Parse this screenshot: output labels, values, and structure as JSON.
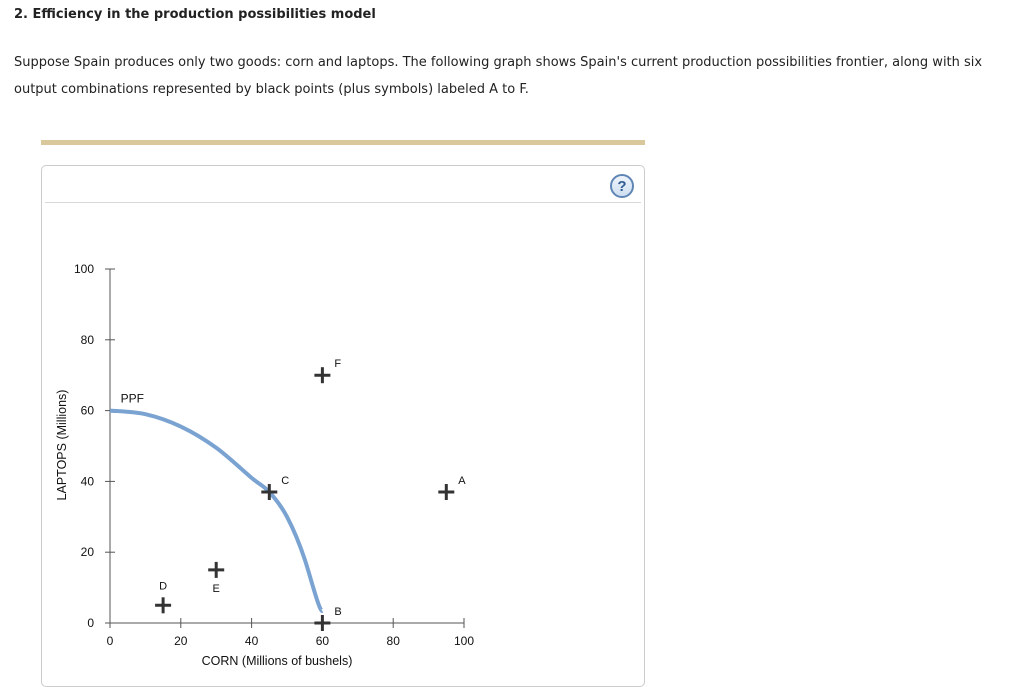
{
  "header": {
    "title": "2. Efficiency in the production possibilities model",
    "intro_line1": "Suppose Spain produces only two goods: corn and laptops. The following graph shows Spain's current production possibilities frontier, along with six",
    "intro_line2": "output combinations represented by black points (plus symbols) labeled A to F."
  },
  "panel": {
    "help_icon": "?"
  },
  "colors": {
    "accent_bar": "#d9c89c",
    "ppf_line": "#7aa3d2",
    "point": "#333333",
    "axis": "#555555"
  },
  "chart_data": {
    "type": "scatter",
    "title": "",
    "xlabel": "CORN (Millions of bushels)",
    "ylabel": "LAPTOPS (Millions)",
    "xlim": [
      0,
      100
    ],
    "ylim": [
      0,
      100
    ],
    "x_ticks": [
      0,
      20,
      40,
      60,
      80,
      100
    ],
    "y_ticks": [
      0,
      20,
      40,
      60,
      80,
      100
    ],
    "grid": false,
    "legend": null,
    "series": [
      {
        "name": "PPF",
        "type": "line",
        "label": "PPF",
        "points": [
          [
            0,
            60
          ],
          [
            10,
            59
          ],
          [
            20,
            55.5
          ],
          [
            30,
            49.5
          ],
          [
            40,
            41
          ],
          [
            45,
            37
          ],
          [
            50,
            30
          ],
          [
            55,
            18
          ],
          [
            60,
            0
          ]
        ]
      },
      {
        "name": "Output combinations",
        "type": "scatter",
        "marker": "plus",
        "points": [
          {
            "label": "A",
            "x": 95,
            "y": 37
          },
          {
            "label": "B",
            "x": 60,
            "y": 0
          },
          {
            "label": "C",
            "x": 45,
            "y": 37
          },
          {
            "label": "D",
            "x": 15,
            "y": 5
          },
          {
            "label": "E",
            "x": 30,
            "y": 15
          },
          {
            "label": "F",
            "x": 60,
            "y": 70
          }
        ]
      }
    ]
  }
}
